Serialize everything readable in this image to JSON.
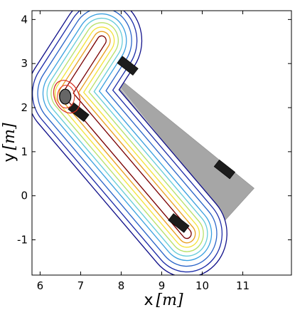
{
  "chart_data": {
    "type": "contour",
    "title": "",
    "xlabel": "x",
    "xlabel_unit": "[m]",
    "ylabel": "y",
    "ylabel_unit": "[m]",
    "xlim": [
      5.8,
      12.2
    ],
    "ylim": [
      -1.8,
      4.2
    ],
    "xticks": [
      "6",
      "7",
      "8",
      "9",
      "10",
      "11"
    ],
    "yticks": [
      "-1",
      "0",
      "1",
      "2",
      "3",
      "4"
    ],
    "grid": false,
    "legend": "none",
    "room": {
      "fill": "#a6a6a6",
      "corners": [
        [
          7.52,
          2.98
        ],
        [
          11.28,
          0.17
        ],
        [
          9.9,
          -1.23
        ],
        [
          6.82,
          2.18
        ]
      ],
      "inner_line": [
        [
          7.52,
          2.98
        ],
        [
          9.97,
          0.14
        ],
        [
          6.85,
          2.08
        ]
      ]
    },
    "path": {
      "polyline": [
        [
          7.52,
          3.52
        ],
        [
          6.68,
          2.32
        ],
        [
          9.62,
          -0.86
        ]
      ],
      "contour_offsets": [
        0.12,
        0.22,
        0.32,
        0.42,
        0.52,
        0.62,
        0.75,
        0.88,
        1.0
      ],
      "contour_colors": [
        "#7a0000",
        "#e8a020",
        "#f3e33a",
        "#b8e06a",
        "#66ccd8",
        "#3aa0e0",
        "#2a64c8",
        "#1c2ca8",
        "#10108a"
      ]
    },
    "markers": [
      {
        "center": [
          8.16,
          2.95
        ],
        "angle_deg": -38
      },
      {
        "center": [
          6.95,
          1.9
        ],
        "angle_deg": -38
      },
      {
        "center": [
          10.55,
          0.6
        ],
        "angle_deg": -38
      },
      {
        "center": [
          9.42,
          -0.62
        ],
        "angle_deg": -38
      }
    ],
    "person": {
      "center": [
        6.62,
        2.25
      ],
      "rx": 0.14,
      "ry": 0.17
    }
  }
}
